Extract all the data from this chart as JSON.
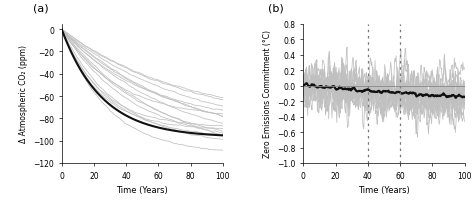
{
  "panel_a": {
    "label": "(a)",
    "xlabel": "Time (Years)",
    "ylabel": "Δ Atmospheric CO₂ (ppm)",
    "xlim": [
      0,
      100
    ],
    "ylim": [
      -120,
      5
    ],
    "yticks": [
      0,
      -20,
      -40,
      -60,
      -80,
      -100,
      -120
    ],
    "xticks": [
      0,
      20,
      40,
      60,
      80,
      100
    ],
    "n_gray_lines": 16,
    "gray_color": "#c0c0c0",
    "black_color": "#111111",
    "tau_range": [
      20,
      80
    ],
    "final_range": [
      -80,
      -120
    ],
    "black_tau": 25,
    "black_final": -97
  },
  "panel_b": {
    "label": "(b)",
    "xlabel": "Time (Years)",
    "ylabel": "Zero Emissions Commitment (°C)",
    "xlim": [
      0,
      100
    ],
    "ylim": [
      -1.0,
      0.8
    ],
    "yticks": [
      -1.0,
      -0.8,
      -0.6,
      -0.4,
      -0.2,
      0.0,
      0.2,
      0.4,
      0.6,
      0.8
    ],
    "xticks": [
      0,
      20,
      40,
      60,
      80,
      100
    ],
    "dashed_lines": [
      40,
      60
    ],
    "n_gray_lines": 16,
    "gray_color": "#c0c0c0",
    "black_color": "#111111",
    "noise_scale_range": [
      0.12,
      0.35
    ],
    "drift_range": [
      -0.3,
      0.1
    ],
    "smooth_window": 4,
    "black_drift": -0.15,
    "black_noise_scale": 0.035,
    "black_smooth_window": 6
  },
  "background_color": "#ffffff",
  "figsize": [
    4.74,
    2.05
  ],
  "dpi": 100
}
